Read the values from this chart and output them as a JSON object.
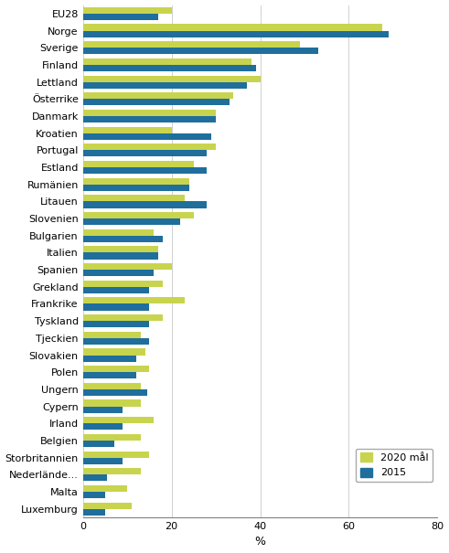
{
  "categories": [
    "EU28",
    "Norge",
    "Sverige",
    "Finland",
    "Lettland",
    "Österrike",
    "Danmark",
    "Kroatien",
    "Portugal",
    "Estland",
    "Rumänien",
    "Litauen",
    "Slovenien",
    "Bulgarien",
    "Italien",
    "Spanien",
    "Grekland",
    "Frankrike",
    "Tyskland",
    "Tjeckien",
    "Slovakien",
    "Polen",
    "Ungern",
    "Cypern",
    "Irland",
    "Belgien",
    "Storbritannien",
    "Nederlände...",
    "Malta",
    "Luxemburg"
  ],
  "val_2020": [
    20,
    67.5,
    49,
    38,
    40,
    34,
    30,
    20,
    30,
    25,
    24,
    23,
    25,
    16,
    17,
    20,
    18,
    23,
    18,
    13,
    14,
    15,
    13,
    13,
    16,
    13,
    15,
    13,
    10,
    11
  ],
  "val_2015": [
    17,
    69,
    53,
    39,
    37,
    33,
    30,
    29,
    28,
    28,
    24,
    28,
    22,
    18,
    17,
    16,
    15,
    15,
    15,
    15,
    12,
    12,
    14.5,
    9,
    9,
    7,
    9,
    5.5,
    5,
    5
  ],
  "color_2020": "#c8d44e",
  "color_2015": "#1f6e9c",
  "xlabel": "%",
  "xlim": [
    0,
    80
  ],
  "xticks": [
    0,
    20,
    40,
    60,
    80
  ],
  "legend_2020": "2020 mål",
  "legend_2015": "2015",
  "bar_height": 0.38,
  "figsize": [
    4.91,
    6.05
  ],
  "dpi": 100,
  "tick_fontsize": 8.0,
  "xlabel_fontsize": 9
}
